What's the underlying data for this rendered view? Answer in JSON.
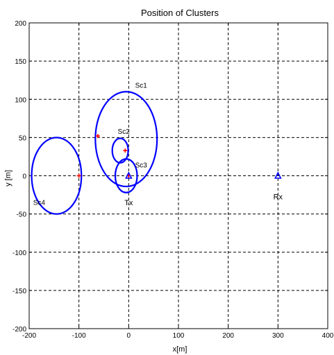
{
  "chart_data": {
    "type": "scatter",
    "title": "Position of Clusters",
    "xlabel": "x[m]",
    "ylabel": "y [m]",
    "xlim": [
      -200,
      400
    ],
    "ylim": [
      -200,
      200
    ],
    "xticks": [
      -200,
      -100,
      0,
      100,
      200,
      300,
      400
    ],
    "yticks": [
      -200,
      -150,
      -100,
      -50,
      0,
      50,
      100,
      150,
      200
    ],
    "xtick_labels": [
      "-200",
      "-100",
      "0",
      "100",
      "200",
      "300",
      "400"
    ],
    "ytick_labels": [
      "-200",
      "-150",
      "-100",
      "-50",
      "0",
      "50",
      "100",
      "150",
      "200"
    ],
    "grid": true,
    "circle_color": "#0000ff",
    "center_color": "#ff0000",
    "clusters": [
      {
        "name": "Sc1",
        "cx": -5,
        "cy": 48,
        "r": 62,
        "center": [
          -62,
          52
        ],
        "label_at": [
          25,
          115
        ]
      },
      {
        "name": "Sc2",
        "cx": -17,
        "cy": 33,
        "r": 16,
        "center": [
          -7,
          33
        ],
        "label_at": [
          -10,
          55
        ]
      },
      {
        "name": "Sc3",
        "cx": -5,
        "cy": 0,
        "r": 22,
        "center": [
          0,
          0
        ],
        "label_at": [
          25,
          11
        ]
      },
      {
        "name": "Sc4",
        "cx": -145,
        "cy": 0,
        "r": 50,
        "center": [
          -100,
          0
        ],
        "label_at": [
          -180,
          -38
        ]
      }
    ],
    "nodes": [
      {
        "name": "Tx",
        "x": 0,
        "y": 0,
        "label_at": [
          0,
          -35
        ]
      },
      {
        "name": "Rx",
        "x": 300,
        "y": 0,
        "label_at": [
          300,
          -27
        ]
      }
    ],
    "node_color": "#0000ff"
  }
}
